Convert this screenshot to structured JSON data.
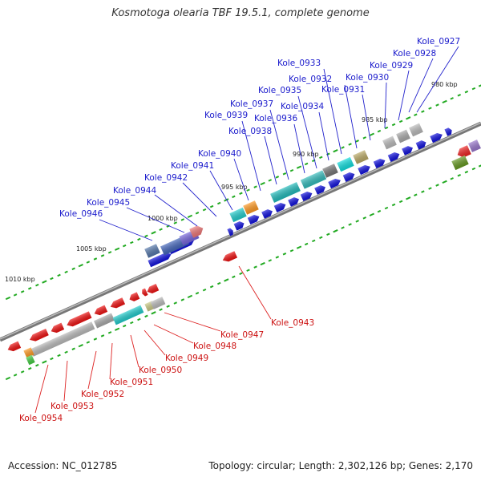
{
  "title": "Kosmotoga olearia TBF 19.5.1, complete genome",
  "footer": {
    "accession": "Accession: NC_012785",
    "info": "Topology: circular; Length: 2,302,126 bp; Genes: 2,170"
  },
  "colors": {
    "forward": "#1010dd",
    "reverse": "#ee1111",
    "backbone": "#888888",
    "tick": "#22aa22",
    "label_forward": "#1a1acc",
    "label_reverse": "#cc1111"
  },
  "tick_labels": [
    "980 kbp",
    "985 kbp",
    "990 kbp",
    "995 kbp",
    "1000 kbp",
    "1005 kbp",
    "1010 kbp"
  ],
  "forward_genes": [
    "Kole_0927",
    "Kole_0928",
    "Kole_0929",
    "Kole_0930",
    "Kole_0931",
    "Kole_0932",
    "Kole_0933",
    "Kole_0934",
    "Kole_0935",
    "Kole_0936",
    "Kole_0937",
    "Kole_0938",
    "Kole_0939",
    "Kole_0940",
    "Kole_0941",
    "Kole_0942",
    "Kole_0944",
    "Kole_0945",
    "Kole_0946"
  ],
  "reverse_genes": [
    "Kole_0943",
    "Kole_0947",
    "Kole_0948",
    "Kole_0949",
    "Kole_0950",
    "Kole_0951",
    "Kole_0952",
    "Kole_0953",
    "Kole_0954"
  ]
}
